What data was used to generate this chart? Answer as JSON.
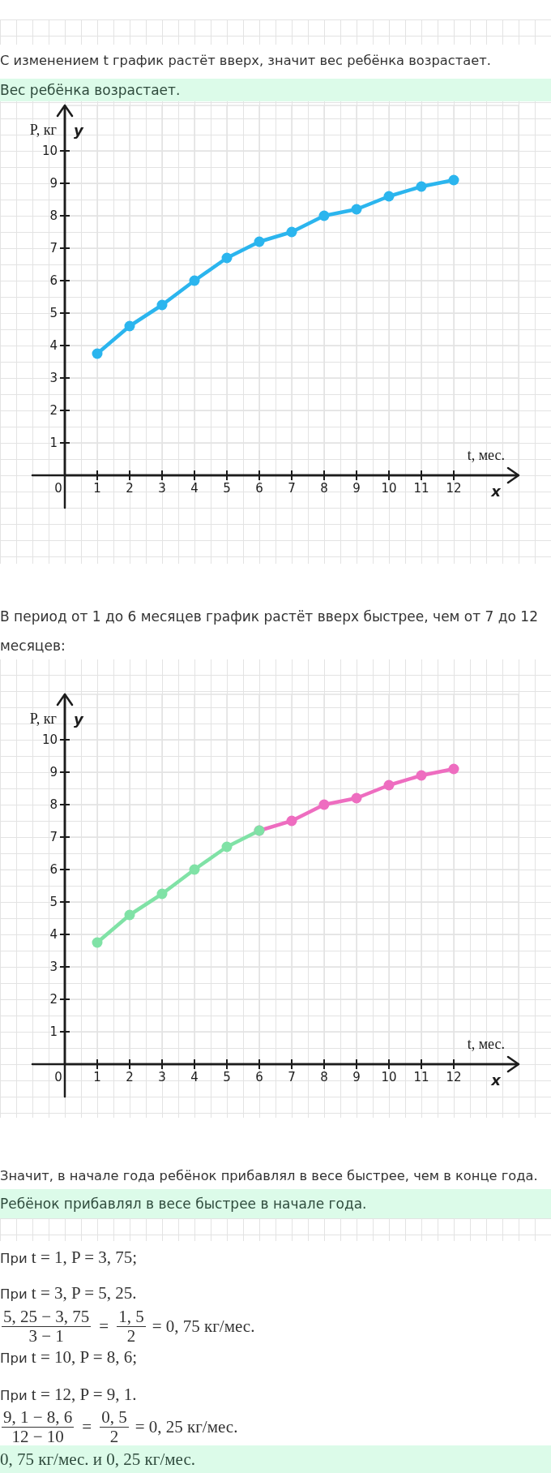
{
  "chart_data": [
    {
      "type": "line",
      "xlabel": "t, мес.",
      "ylabel": "P, кг",
      "annotations": [
        "y",
        "x",
        "С изменением t график растёт вверх, значит вес ребёнка возрастает.",
        "Вес ребёнка возрастает."
      ],
      "x": [
        1,
        2,
        3,
        4,
        5,
        6,
        7,
        8,
        9,
        10,
        11,
        12
      ],
      "series": [
        {
          "color": "#2bb5ee",
          "values": [
            3.75,
            4.6,
            5.25,
            6,
            6.7,
            7.2,
            7.5,
            8,
            8.2,
            8.6,
            8.9,
            9.1
          ]
        }
      ],
      "xlim": [
        0,
        14
      ],
      "ylim": [
        0,
        11.4
      ],
      "xticks": [
        {
          "value": 0,
          "label": "0"
        },
        1,
        2,
        3,
        4,
        5,
        6,
        7,
        8,
        9,
        10,
        11,
        12
      ],
      "yticks": [
        1,
        2,
        3,
        4,
        5,
        6,
        7,
        8,
        9,
        10
      ],
      "grid": true,
      "marker": "circle",
      "line_style": "solid"
    },
    {
      "type": "line",
      "xlabel": "t, мес.",
      "ylabel": "P, кг",
      "annotations": [
        "y",
        "x",
        "В период от 1 до 6 месяцев график растёт вверх быстрее, чем от 7 до 12 месяцев:",
        "Значит, в начале года ребёнок прибавлял в весе быстрее, чем в конце года.",
        "Ребёнок прибавлял в весе быстрее в начале года.",
        "При t = 1, P = 3, 75;",
        "При t = 3, P = 5, 25.",
        "5, 25 − 3, 75",
        "3 − 1",
        "=",
        "1, 5",
        "2",
        "= 0, 75 кг/мес.",
        "При t = 10, P = 8, 6;",
        "При t = 12, P = 9, 1.",
        "9, 1 − 8, 6",
        "12 − 10",
        "=",
        "0, 5",
        "2",
        "= 0, 25 кг/мес.",
        "0, 75 кг/мес. и 0, 25 кг/мес."
      ],
      "series": [
        {
          "color": "#80e2a6",
          "x": [
            1,
            2,
            3,
            4,
            5,
            6
          ],
          "values": [
            3.75,
            4.6,
            5.25,
            6,
            6.7,
            7.2
          ]
        },
        {
          "color": "#ee6dc0",
          "x": [
            6,
            7,
            8,
            9,
            10,
            11,
            12
          ],
          "values": [
            7.2,
            7.5,
            8,
            8.2,
            8.6,
            8.9,
            9.1
          ]
        }
      ],
      "xlim": [
        0,
        14
      ],
      "ylim": [
        0,
        11.4
      ],
      "xticks": [
        {
          "value": 0,
          "label": "0"
        },
        1,
        2,
        3,
        4,
        5,
        6,
        7,
        8,
        9,
        10,
        11,
        12
      ],
      "yticks": [
        1,
        2,
        3,
        4,
        5,
        6,
        7,
        8,
        9,
        10
      ],
      "grid": true,
      "marker": "circle",
      "line_style": "solid"
    }
  ]
}
